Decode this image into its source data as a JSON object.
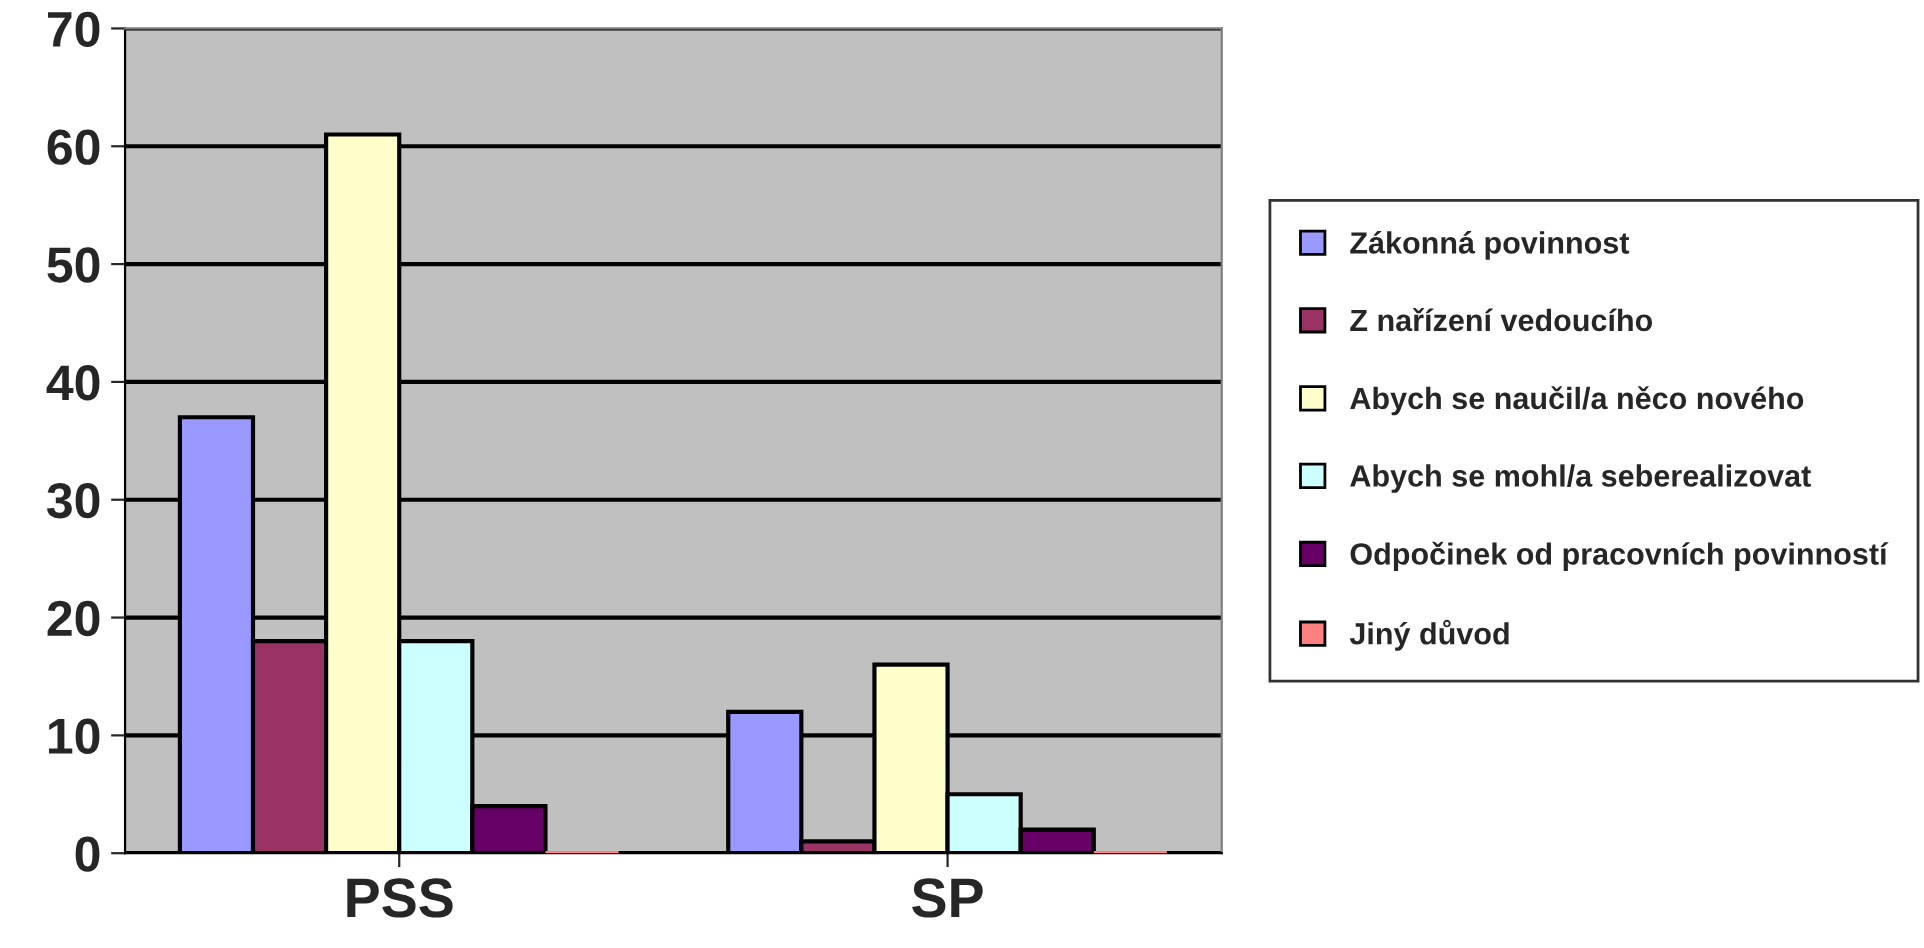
{
  "chart_data": {
    "type": "bar",
    "categories": [
      "PSS",
      "SP"
    ],
    "series": [
      {
        "name": "Zákonná povinnost",
        "color": "#9999ff",
        "values": [
          37,
          12
        ]
      },
      {
        "name": "Z nařízení vedoucího",
        "color": "#993366",
        "values": [
          18,
          1
        ]
      },
      {
        "name": "Abych se naučil/a něco nového",
        "color": "#ffffcc",
        "values": [
          61,
          16
        ]
      },
      {
        "name": "Abych se mohl/a seberealizovat",
        "color": "#ccffff",
        "values": [
          18,
          5
        ]
      },
      {
        "name": "Odpočinek od pracovních povinností",
        "color": "#660066",
        "values": [
          4,
          2
        ]
      },
      {
        "name": "Jiný důvod",
        "color": "#ff8080",
        "values": [
          0,
          0
        ]
      }
    ],
    "ylim": [
      0,
      70
    ],
    "yticks": [
      0,
      10,
      20,
      30,
      40,
      50,
      60,
      70
    ],
    "grid": "y",
    "legend": "right"
  }
}
